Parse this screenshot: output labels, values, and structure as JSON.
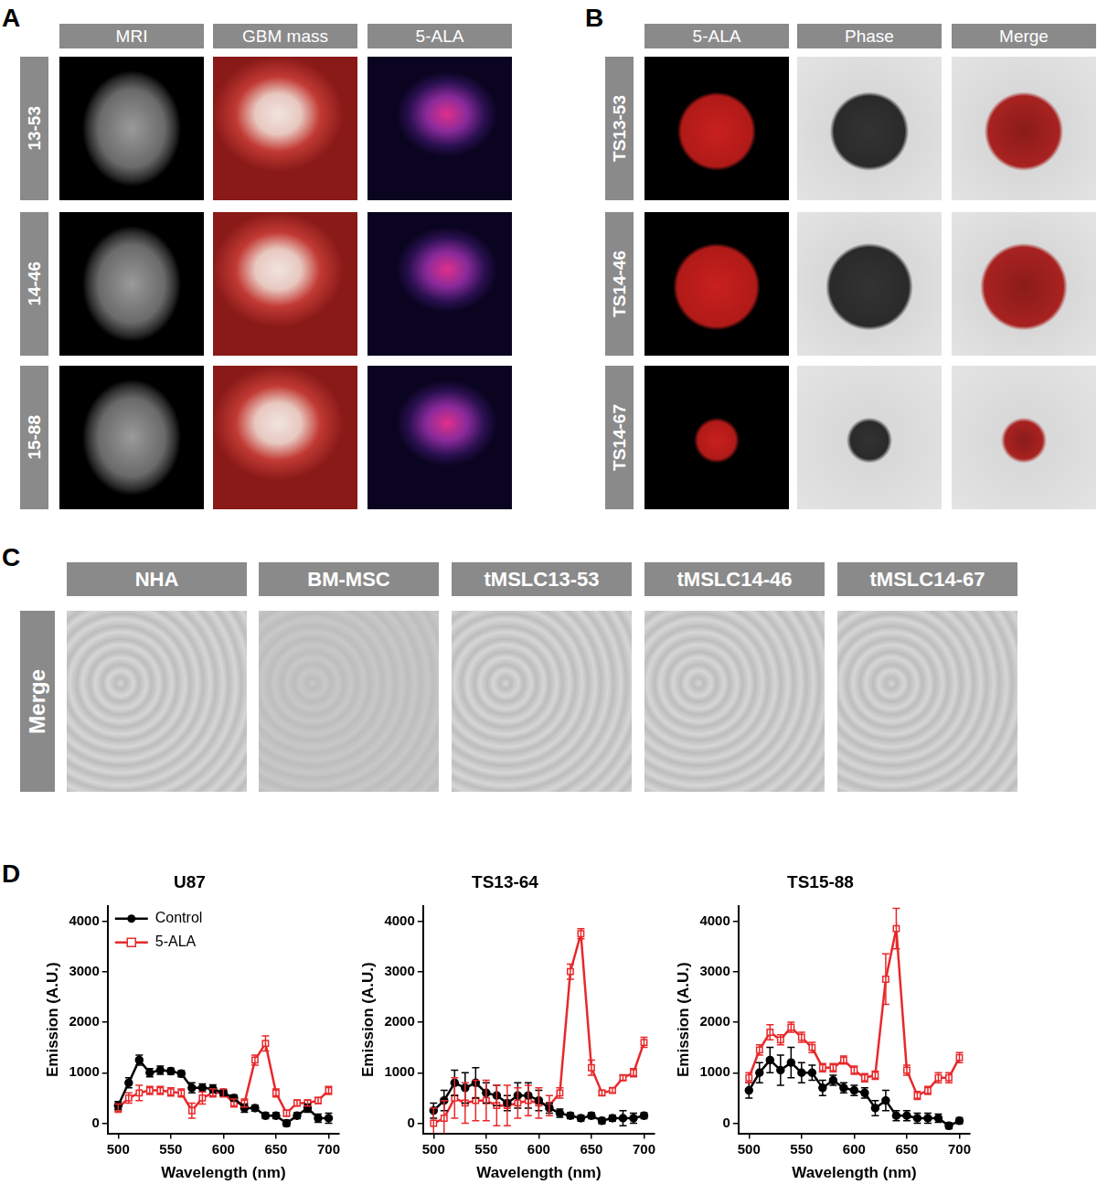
{
  "panels": {
    "A": {
      "label": "A",
      "columns": [
        "MRI",
        "GBM mass",
        "5-ALA"
      ],
      "rows": [
        "13-53",
        "14-46",
        "15-88"
      ]
    },
    "B": {
      "label": "B",
      "columns": [
        "5-ALA",
        "Phase",
        "Merge"
      ],
      "rows": [
        "TS13-53",
        "TS14-46",
        "TS14-67"
      ]
    },
    "C": {
      "label": "C",
      "columns": [
        "NHA",
        "BM-MSC",
        "tMSLC13-53",
        "tMSLC14-46",
        "tMSLC14-67"
      ],
      "rows": [
        "Merge"
      ]
    },
    "D": {
      "label": "D"
    }
  },
  "chart_data": [
    {
      "type": "line",
      "title": "U87",
      "x_label": "Wavelength (nm)",
      "y_label": "Emission (A.U.)",
      "x": [
        500,
        510,
        520,
        530,
        540,
        550,
        560,
        570,
        580,
        590,
        600,
        610,
        620,
        630,
        640,
        650,
        660,
        670,
        680,
        690,
        700
      ],
      "xlim": [
        490,
        710
      ],
      "xticks": [
        500,
        550,
        600,
        650,
        700
      ],
      "ylim": [
        -200,
        4300
      ],
      "yticks": [
        0,
        1000,
        2000,
        3000,
        4000
      ],
      "grid": false,
      "legend": "upper left",
      "series": [
        {
          "name": "Control",
          "color": "#000000",
          "marker": "circle",
          "values": [
            350,
            800,
            1250,
            1000,
            1050,
            1030,
            980,
            700,
            700,
            680,
            600,
            500,
            300,
            300,
            150,
            150,
            0,
            150,
            300,
            100,
            100
          ],
          "errors": [
            80,
            100,
            100,
            80,
            80,
            60,
            60,
            100,
            80,
            80,
            60,
            60,
            80,
            60,
            60,
            60,
            60,
            60,
            80,
            80,
            100
          ]
        },
        {
          "name": "5-ALA",
          "color": "#e8282b",
          "marker": "open_square",
          "values": [
            300,
            500,
            600,
            650,
            650,
            620,
            600,
            250,
            500,
            600,
            600,
            400,
            400,
            1250,
            1580,
            600,
            200,
            400,
            400,
            450,
            650
          ],
          "errors": [
            80,
            100,
            150,
            80,
            80,
            80,
            80,
            150,
            120,
            80,
            80,
            80,
            80,
            100,
            150,
            80,
            60,
            60,
            60,
            60,
            80
          ]
        }
      ]
    },
    {
      "type": "line",
      "title": "TS13-64",
      "x_label": "Wavelength (nm)",
      "y_label": "Emission (A.U.)",
      "x": [
        500,
        510,
        520,
        530,
        540,
        550,
        560,
        570,
        580,
        590,
        600,
        610,
        620,
        630,
        640,
        650,
        660,
        670,
        680,
        690,
        700
      ],
      "xlim": [
        490,
        710
      ],
      "xticks": [
        500,
        550,
        600,
        650,
        700
      ],
      "ylim": [
        -200,
        4300
      ],
      "yticks": [
        0,
        1000,
        2000,
        3000,
        4000
      ],
      "grid": false,
      "series": [
        {
          "name": "Control",
          "color": "#000000",
          "marker": "circle",
          "values": [
            250,
            450,
            800,
            700,
            800,
            600,
            550,
            400,
            550,
            550,
            450,
            300,
            200,
            150,
            100,
            150,
            50,
            100,
            100,
            100,
            150
          ],
          "errors": [
            150,
            200,
            250,
            300,
            300,
            200,
            200,
            150,
            250,
            250,
            200,
            100,
            80,
            60,
            60,
            60,
            60,
            60,
            150,
            100,
            60
          ]
        },
        {
          "name": "5-ALA",
          "color": "#e8282b",
          "marker": "open_square",
          "values": [
            0,
            100,
            500,
            400,
            450,
            450,
            350,
            350,
            400,
            450,
            400,
            350,
            600,
            3000,
            3750,
            1100,
            600,
            650,
            900,
            1000,
            1600
          ],
          "errors": [
            300,
            350,
            400,
            400,
            400,
            400,
            400,
            400,
            300,
            300,
            300,
            200,
            100,
            150,
            100,
            150,
            50,
            50,
            50,
            80,
            100
          ]
        }
      ]
    },
    {
      "type": "line",
      "title": "TS15-88",
      "x_label": "Wavelength (nm)",
      "y_label": "Emission (A.U.)",
      "x": [
        500,
        510,
        520,
        530,
        540,
        550,
        560,
        570,
        580,
        590,
        600,
        610,
        620,
        630,
        640,
        650,
        660,
        670,
        680,
        690,
        700
      ],
      "xlim": [
        490,
        710
      ],
      "xticks": [
        500,
        550,
        600,
        650,
        700
      ],
      "ylim": [
        -200,
        4300
      ],
      "yticks": [
        0,
        1000,
        2000,
        3000,
        4000
      ],
      "grid": false,
      "series": [
        {
          "name": "Control",
          "color": "#000000",
          "marker": "circle",
          "values": [
            650,
            1000,
            1250,
            1050,
            1200,
            1000,
            1000,
            700,
            850,
            700,
            650,
            600,
            300,
            450,
            150,
            150,
            100,
            100,
            100,
            -50,
            50
          ],
          "errors": [
            150,
            200,
            250,
            300,
            300,
            200,
            150,
            150,
            100,
            100,
            100,
            100,
            150,
            200,
            100,
            100,
            100,
            100,
            80,
            60,
            60
          ]
        },
        {
          "name": "5-ALA",
          "color": "#e8282b",
          "marker": "open_square",
          "values": [
            900,
            1450,
            1800,
            1650,
            1900,
            1700,
            1500,
            1100,
            1100,
            1250,
            1050,
            900,
            950,
            2850,
            3850,
            1050,
            550,
            650,
            900,
            900,
            1300
          ],
          "errors": [
            100,
            100,
            150,
            100,
            100,
            100,
            100,
            80,
            80,
            80,
            80,
            80,
            80,
            500,
            400,
            100,
            80,
            80,
            100,
            100,
            100
          ]
        }
      ]
    }
  ]
}
